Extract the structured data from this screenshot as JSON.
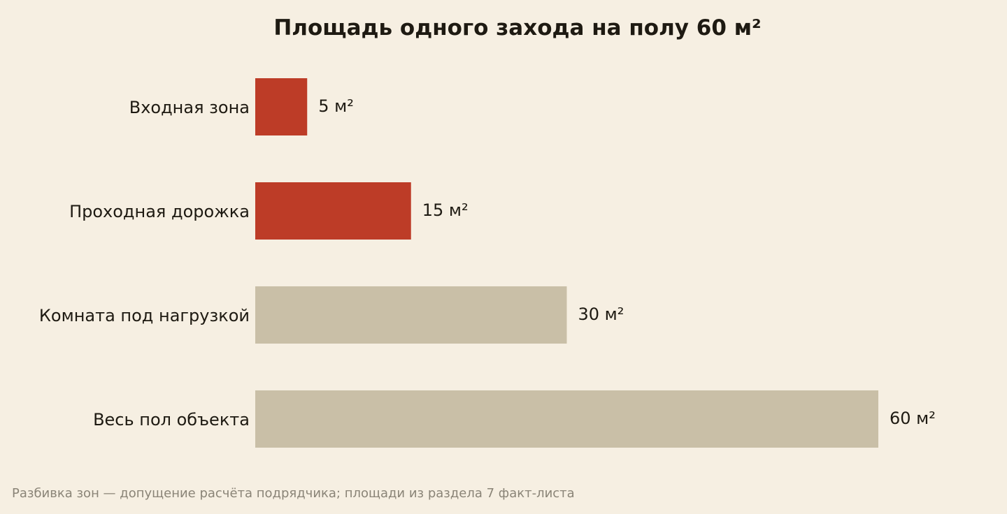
{
  "chart_data": {
    "type": "bar",
    "orientation": "horizontal",
    "title": "Площадь одного захода на полу 60 м²",
    "categories": [
      "Входная зона",
      "Проходная дорожка",
      "Комната под нагрузкой",
      "Весь пол объекта"
    ],
    "values": [
      5,
      15,
      30,
      60
    ],
    "value_labels": [
      "5 м²",
      "15 м²",
      "30 м²",
      "60 м²"
    ],
    "bar_colors": [
      "#bd3c27",
      "#bd3c27",
      "#c9bfa7",
      "#c9bfa7"
    ],
    "xlim": [
      0,
      60
    ],
    "grid": false,
    "legend": "none"
  },
  "footnote": "Разбивка зон — допущение расчёта подрядчика; площади из раздела 7 факт-листа",
  "colors": {
    "background": "#f6efe2",
    "highlight": "#bd3c27",
    "neutral": "#c9bfa7",
    "text": "#1e1a12",
    "muted": "#8a8477"
  }
}
